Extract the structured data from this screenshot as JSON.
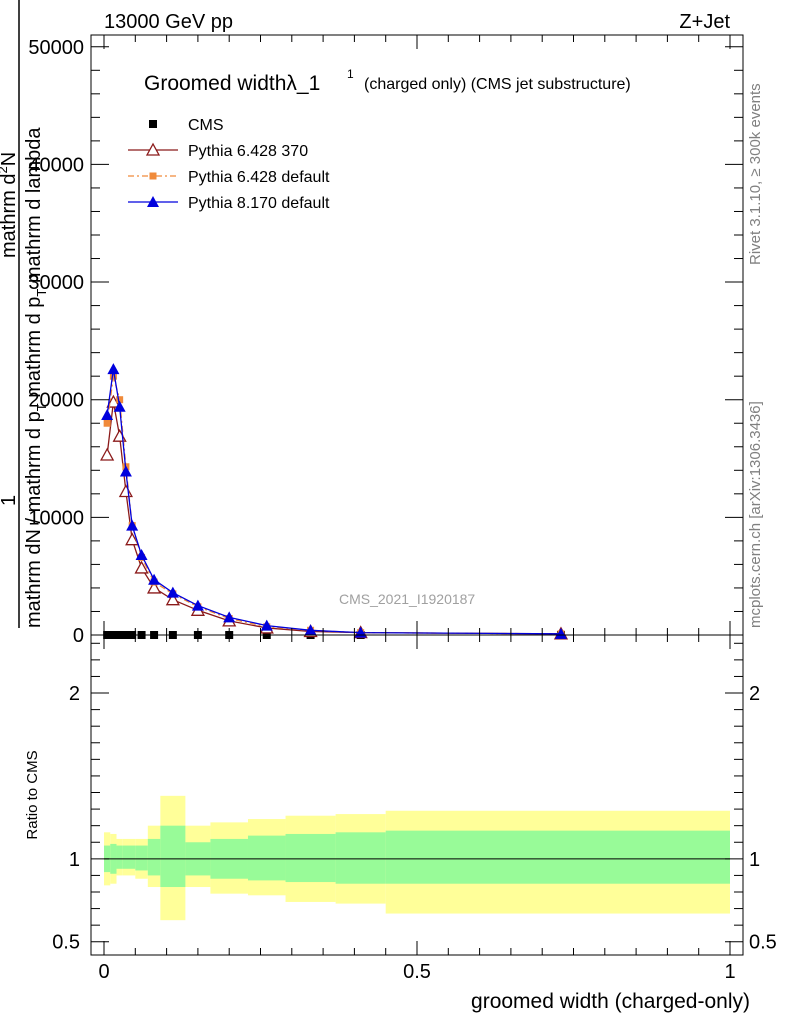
{
  "header": {
    "left": "13000 GeV pp",
    "right": "Z+Jet"
  },
  "side_labels": {
    "rivet": "Rivet 3.1.10, ≥ 300k events",
    "mcplots": "mcplots.cern.ch [arXiv:1306.3436]"
  },
  "watermark": "CMS_2021_I1920187",
  "colors": {
    "cms": "#000000",
    "pythia6_370": "#8b1a1a",
    "pythia6_default": "#f08a3a",
    "pythia8_default": "#0000dd",
    "band_inner": "#98fb98",
    "band_outer": "#ffff99"
  },
  "chart_data": [
    {
      "type": "line",
      "title": "Groomed widthλ_1",
      "title_sup": "1",
      "subtitle": "(charged only) (CMS jet substructure)",
      "ylabel_numerator": "1",
      "ylabel_denominator_parts": [
        "mathrm d",
        "N / mathrm d p",
        "T",
        " mathrm d p",
        "T",
        " mathrm d lambda"
      ],
      "ylabel_numerator_parts": [
        "mathrm d",
        "2",
        "N"
      ],
      "xlim": [
        0,
        1
      ],
      "ylim": [
        0,
        51000
      ],
      "yticks": [
        0,
        10000,
        20000,
        30000,
        40000,
        50000
      ],
      "ytick_labels": [
        "0",
        "10000",
        "20000",
        "30000",
        "40000",
        "50000"
      ],
      "legend": [
        "CMS",
        "Pythia 6.428 370",
        "Pythia 6.428 default",
        "Pythia 8.170 default"
      ],
      "series": [
        {
          "name": "CMS",
          "x": [
            0.005,
            0.015,
            0.025,
            0.035,
            0.045,
            0.06,
            0.08,
            0.11,
            0.15,
            0.2,
            0.26,
            0.33,
            0.41,
            0.73
          ],
          "y": [
            0,
            0,
            0,
            0,
            0,
            0,
            0,
            0,
            0,
            0,
            0,
            0,
            0,
            0
          ]
        },
        {
          "name": "Pythia 6.428 370",
          "x": [
            0.005,
            0.015,
            0.025,
            0.035,
            0.045,
            0.06,
            0.08,
            0.11,
            0.15,
            0.2,
            0.26,
            0.33,
            0.41,
            0.73
          ],
          "y": [
            15300,
            19800,
            16900,
            12200,
            8100,
            5700,
            4000,
            3000,
            2100,
            1200,
            600,
            300,
            200,
            100
          ]
        },
        {
          "name": "Pythia 6.428 default",
          "x": [
            0.005,
            0.015,
            0.025,
            0.035,
            0.045,
            0.06,
            0.08,
            0.11,
            0.15,
            0.2,
            0.26,
            0.33,
            0.41,
            0.73
          ],
          "y": [
            18000,
            22000,
            20000,
            14300,
            9300,
            6600,
            4500,
            3500,
            2400,
            1400,
            700,
            400,
            200,
            100
          ]
        },
        {
          "name": "Pythia 8.170 default",
          "x": [
            0.005,
            0.015,
            0.025,
            0.035,
            0.045,
            0.06,
            0.08,
            0.11,
            0.15,
            0.2,
            0.26,
            0.33,
            0.41,
            0.73
          ],
          "y": [
            18700,
            22600,
            19400,
            13900,
            9300,
            6800,
            4700,
            3600,
            2500,
            1500,
            800,
            400,
            200,
            100
          ]
        }
      ]
    },
    {
      "type": "area",
      "ylabel": "Ratio to CMS",
      "xlabel": "groomed width (charged-only)",
      "xlim": [
        0,
        1
      ],
      "ylim": [
        0.42,
        2.35
      ],
      "yticks": [
        0.5,
        1,
        2
      ],
      "ytick_labels": [
        "0.5",
        "1",
        "2"
      ],
      "xticks": [
        0,
        0.5,
        1
      ],
      "xtick_labels": [
        "0",
        "0.5",
        "1"
      ],
      "reference_line": 1,
      "bins": [
        0,
        0.01,
        0.02,
        0.03,
        0.05,
        0.07,
        0.09,
        0.13,
        0.17,
        0.23,
        0.29,
        0.37,
        0.45,
        1.0
      ],
      "band_inner": {
        "lower": [
          0.92,
          0.91,
          0.94,
          0.94,
          0.93,
          0.9,
          0.83,
          0.9,
          0.88,
          0.87,
          0.86,
          0.85,
          0.85
        ],
        "upper": [
          1.08,
          1.09,
          1.08,
          1.08,
          1.08,
          1.12,
          1.2,
          1.1,
          1.12,
          1.14,
          1.15,
          1.16,
          1.17
        ]
      },
      "band_outer": {
        "lower": [
          0.84,
          0.85,
          0.9,
          0.9,
          0.88,
          0.83,
          0.63,
          0.83,
          0.79,
          0.78,
          0.74,
          0.73,
          0.67
        ],
        "upper": [
          1.16,
          1.15,
          1.12,
          1.12,
          1.12,
          1.2,
          1.38,
          1.2,
          1.22,
          1.24,
          1.26,
          1.27,
          1.29
        ]
      }
    }
  ]
}
